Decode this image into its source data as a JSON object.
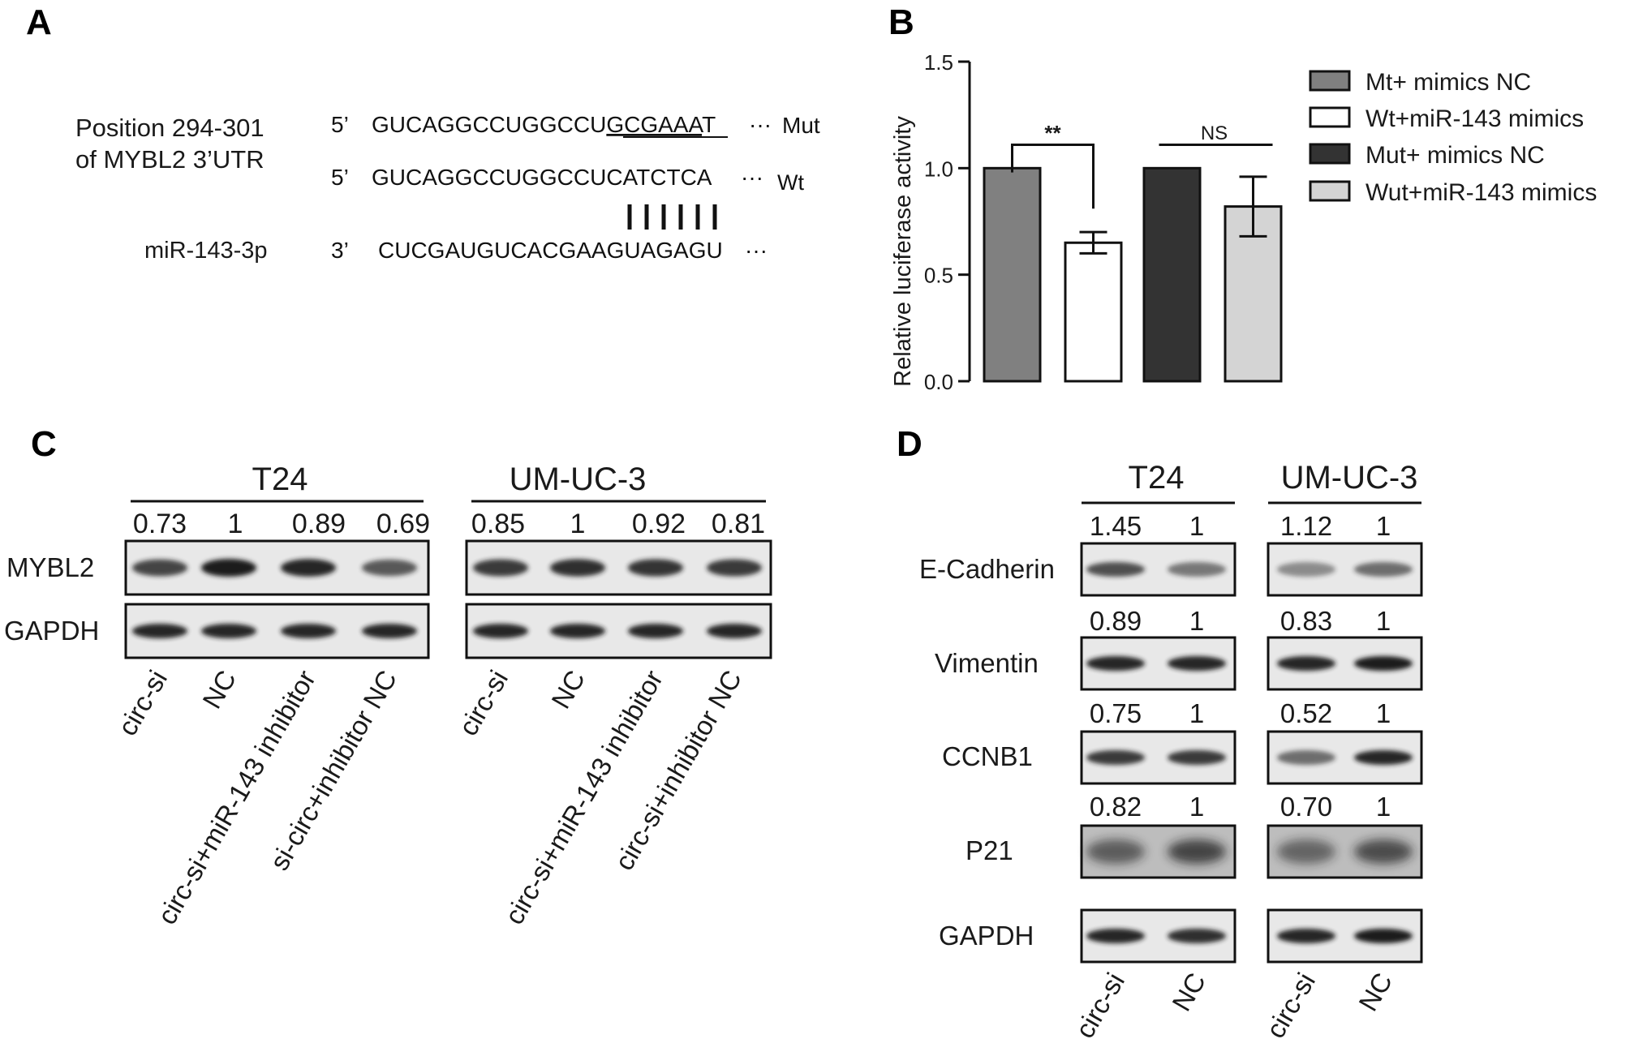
{
  "panels": {
    "a": "A",
    "b": "B",
    "c": "C",
    "d": "D"
  },
  "panel_a": {
    "position_line1": "Position  294-301",
    "position_line2": "of MYBL2 3’UTR",
    "mut": {
      "prime": "5’",
      "seq_plain": "GUCAGGCCUGGCCU",
      "seq_underlined": "GCGAAA",
      "seq_tail": "T",
      "dots": "···",
      "label": "Mut"
    },
    "wt": {
      "prime": "5’",
      "seq": "GUCAGGCCUGGCCUCATCTCA",
      "dots": "···",
      "label": "Wt"
    },
    "pairing": "| | | | | |",
    "mir": {
      "name": "miR-143-3p",
      "prime": "3’",
      "seq": "CUCGAUGUCACGAAGUAGAGU",
      "dots": "···"
    }
  },
  "chart_data": {
    "type": "bar",
    "ylabel": "Relative luciferase activity",
    "ylim": [
      0,
      1.5
    ],
    "yticks": [
      "0.0",
      "0.5",
      "1.0",
      "1.5"
    ],
    "series": [
      {
        "name": "Mt+ mimics NC",
        "value": 1.0,
        "error": 0,
        "color": "#808080"
      },
      {
        "name": "Wt+miR-143 mimics",
        "value": 0.65,
        "error": 0.05,
        "color": "#ffffff"
      },
      {
        "name": "Mut+ mimics NC",
        "value": 1.0,
        "error": 0,
        "color": "#333333"
      },
      {
        "name": "Wut+miR-143 mimics",
        "value": 0.82,
        "error": 0.14,
        "color": "#d4d4d4"
      }
    ],
    "annotations": [
      {
        "text": "**",
        "between": [
          0,
          1
        ]
      },
      {
        "text": "NS",
        "between": [
          2,
          3
        ]
      }
    ],
    "legend_position": "right"
  },
  "panel_c": {
    "groups": [
      {
        "name": "T24",
        "values": [
          "0.73",
          "1",
          "0.89",
          "0.69"
        ],
        "lanes": [
          "circ-si",
          "NC",
          "circ-si+miR-143 inhibitor",
          "si-circ+inhibitor  NC"
        ]
      },
      {
        "name": "UM-UC-3",
        "values": [
          "0.85",
          "1",
          "0.92",
          "0.81"
        ],
        "lanes": [
          "circ-si",
          "NC",
          "circ-si+miR-143 inhibitor",
          "circ-si+inhibitor  NC"
        ]
      }
    ],
    "proteins": [
      "MYBL2",
      "GAPDH"
    ]
  },
  "panel_d": {
    "groups": [
      "T24",
      "UM-UC-3"
    ],
    "proteins": [
      "E-Cadherin",
      "Vimentin",
      "CCNB1",
      "P21",
      "GAPDH"
    ],
    "values": {
      "E-Cadherin": [
        "1.45",
        "1",
        "1.12",
        "1"
      ],
      "Vimentin": [
        "0.89",
        "1",
        "0.83",
        "1"
      ],
      "CCNB1": [
        "0.75",
        "1",
        "0.52",
        "1"
      ],
      "P21": [
        "0.82",
        "1",
        "0.70",
        "1"
      ]
    },
    "lanes": [
      "circ-si",
      "NC",
      "circ-si",
      "NC"
    ]
  }
}
